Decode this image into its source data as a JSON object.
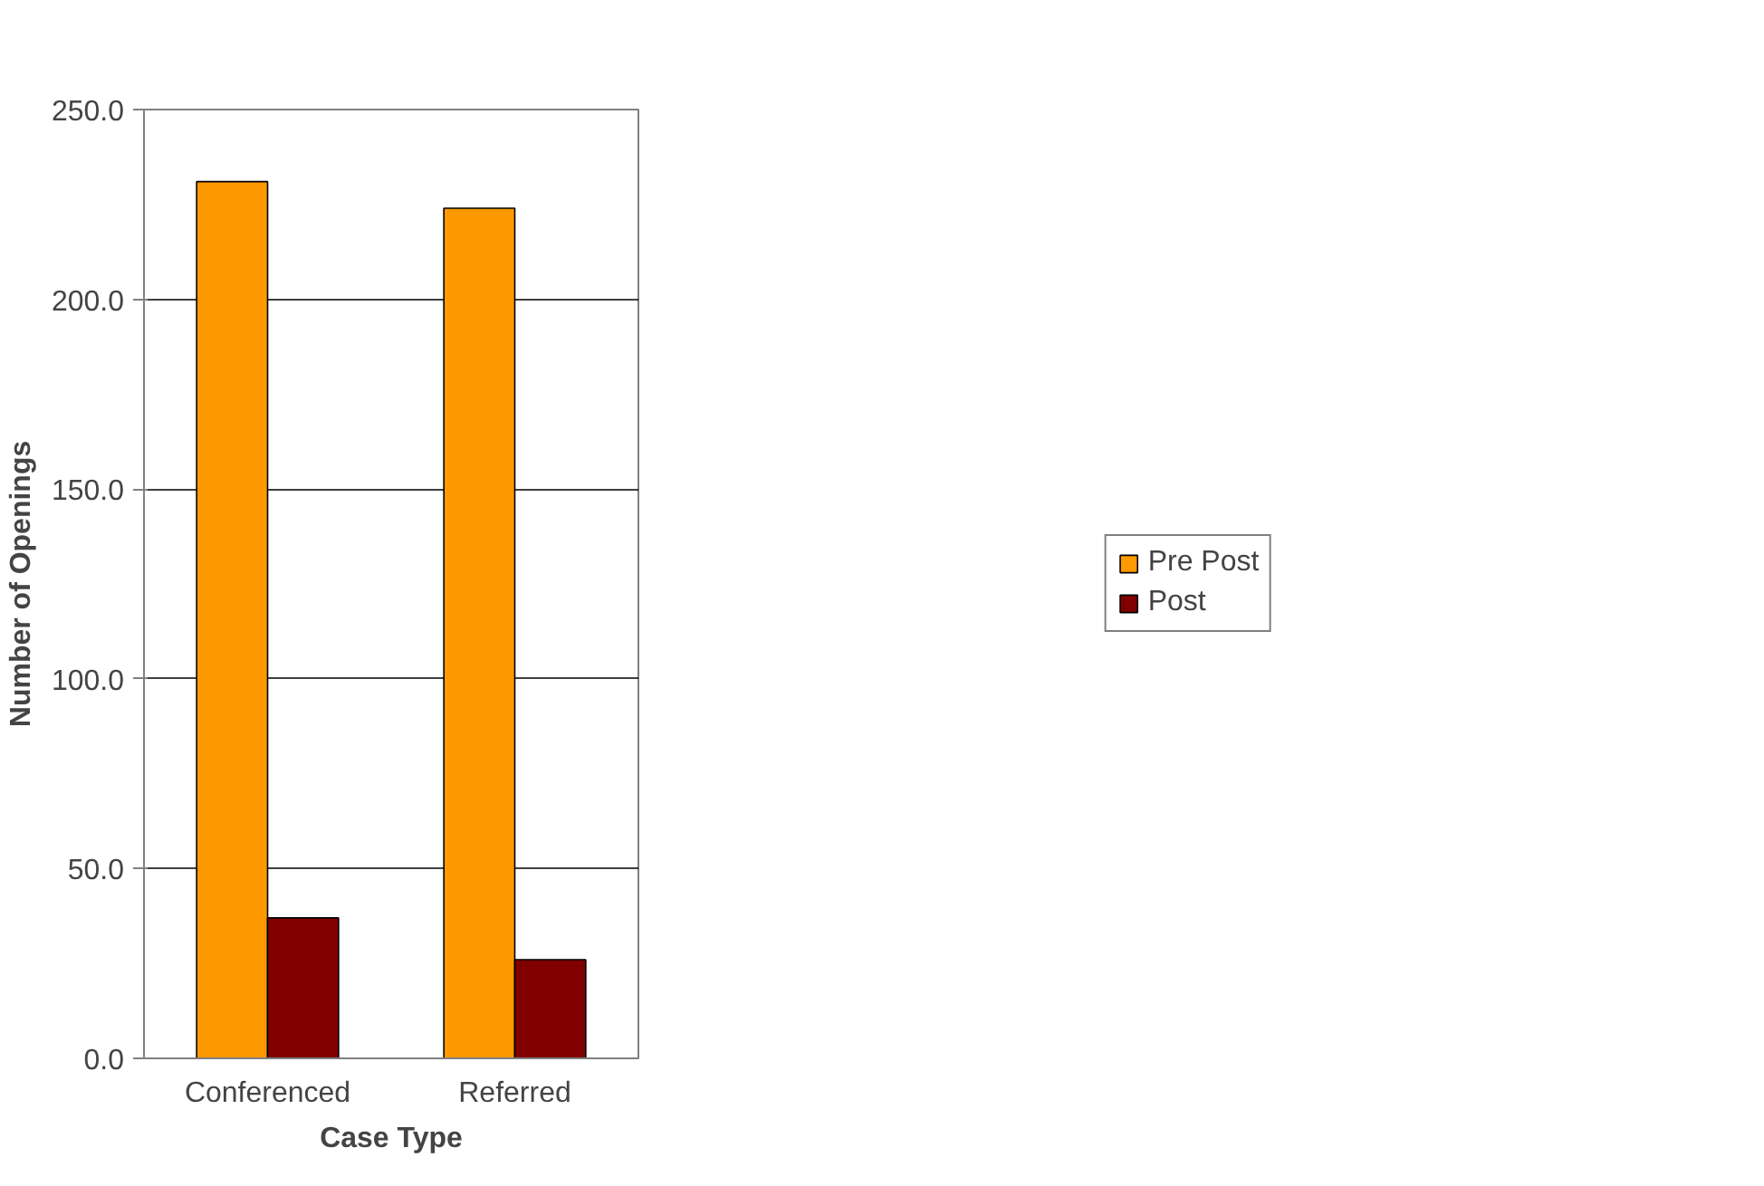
{
  "chart_data": {
    "type": "bar",
    "xlabel": "Case Type",
    "ylabel": "Number of Openings",
    "categories": [
      "Conferenced",
      "Referred"
    ],
    "series": [
      {
        "name": "Pre Post",
        "color": "#ff9900",
        "values": [
          231,
          224
        ]
      },
      {
        "name": "Post",
        "color": "#800000",
        "values": [
          37,
          26
        ]
      }
    ],
    "ylim": [
      0,
      250
    ],
    "yticks": [
      {
        "value": 0,
        "label": "0.0"
      },
      {
        "value": 50,
        "label": "50.0"
      },
      {
        "value": 100,
        "label": "100.0"
      },
      {
        "value": 150,
        "label": "150.0"
      },
      {
        "value": 200,
        "label": "200.0"
      },
      {
        "value": 250,
        "label": "250.0"
      }
    ],
    "grid": "y",
    "legend": "right"
  }
}
